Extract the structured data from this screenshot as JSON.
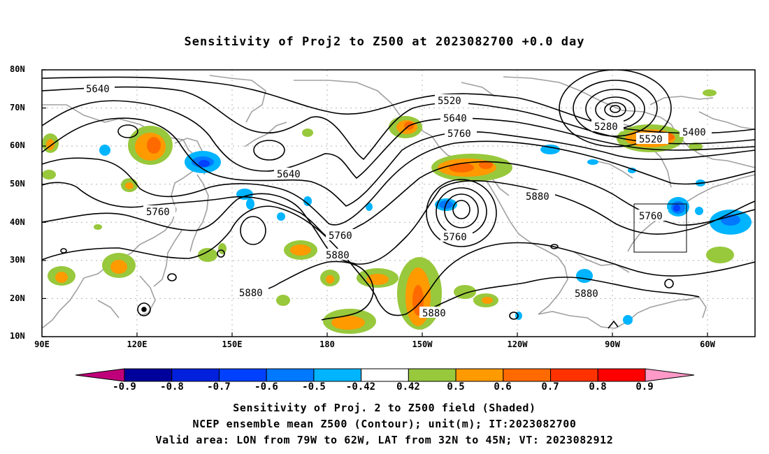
{
  "title": "Sensitivity of Proj2 to Z500 at 2023082700 +0.0 day",
  "lat_labels": [
    "80N",
    "70N",
    "60N",
    "50N",
    "40N",
    "30N",
    "20N",
    "10N"
  ],
  "lon_labels": [
    "90E",
    "120E",
    "150E",
    "180",
    "150W",
    "120W",
    "90W",
    "60W"
  ],
  "contour_labels": {
    "c5640a": "5640",
    "c5520": "5520",
    "c5640b": "5640",
    "c5760a": "5760",
    "c5280": "5280",
    "c5400": "5400",
    "c5520b": "5520",
    "c5640c": "5640",
    "c5760b": "5760",
    "c5760c": "5760",
    "c5760d": "5760",
    "c5760e": "5760",
    "c5880a": "5880",
    "c5880b": "5880",
    "c5880c": "5880",
    "c5880d": "5880",
    "c5880e": "5880"
  },
  "colorbar": {
    "labels": [
      "-0.9",
      "-0.8",
      "-0.7",
      "-0.6",
      "-0.5",
      "-0.42",
      "0.42",
      "0.5",
      "0.6",
      "0.7",
      "0.8",
      "0.9"
    ],
    "colors": {
      "under": "#c0007a",
      "bins": [
        "#00009a",
        "#0020dc",
        "#0040ff",
        "#0078ff",
        "#00b4ff",
        "#ffffff",
        "#98c83c",
        "#ff9a00",
        "#ff6a00",
        "#ff3200",
        "#ff0000"
      ],
      "over": "#ff99c8"
    }
  },
  "captions": {
    "line1": "Sensitivity of Proj. 2 to Z500 field (Shaded)",
    "line2": "NCEP ensemble mean Z500 (Contour); unit(m); IT:2023082700",
    "line3": "Valid area: LON from 79W to 62W, LAT from 32N to 45N; VT: 2023082912"
  }
}
